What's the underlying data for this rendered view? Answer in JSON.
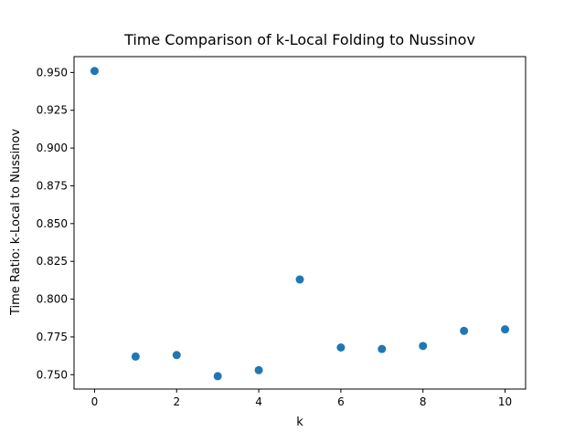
{
  "chart_data": {
    "type": "scatter",
    "title": "Time Comparison of k-Local Folding to Nussinov",
    "xlabel": "k",
    "ylabel": "Time Ratio: k-Local to Nussinov",
    "xlim": [
      -0.5,
      10.5
    ],
    "ylim": [
      0.7405,
      0.9605
    ],
    "x_ticks": [
      0,
      2,
      4,
      6,
      8,
      10
    ],
    "x_tick_labels": [
      "0",
      "2",
      "4",
      "6",
      "8",
      "10"
    ],
    "y_ticks": [
      0.75,
      0.775,
      0.8,
      0.825,
      0.85,
      0.875,
      0.9,
      0.925,
      0.95
    ],
    "y_tick_labels": [
      "0.750",
      "0.775",
      "0.800",
      "0.825",
      "0.850",
      "0.875",
      "0.900",
      "0.925",
      "0.950"
    ],
    "grid": false,
    "marker_color": "#1f77b4",
    "x": [
      0,
      1,
      2,
      3,
      4,
      5,
      6,
      7,
      8,
      9,
      10
    ],
    "y": [
      0.951,
      0.762,
      0.763,
      0.749,
      0.753,
      0.813,
      0.768,
      0.767,
      0.769,
      0.779,
      0.78
    ]
  }
}
